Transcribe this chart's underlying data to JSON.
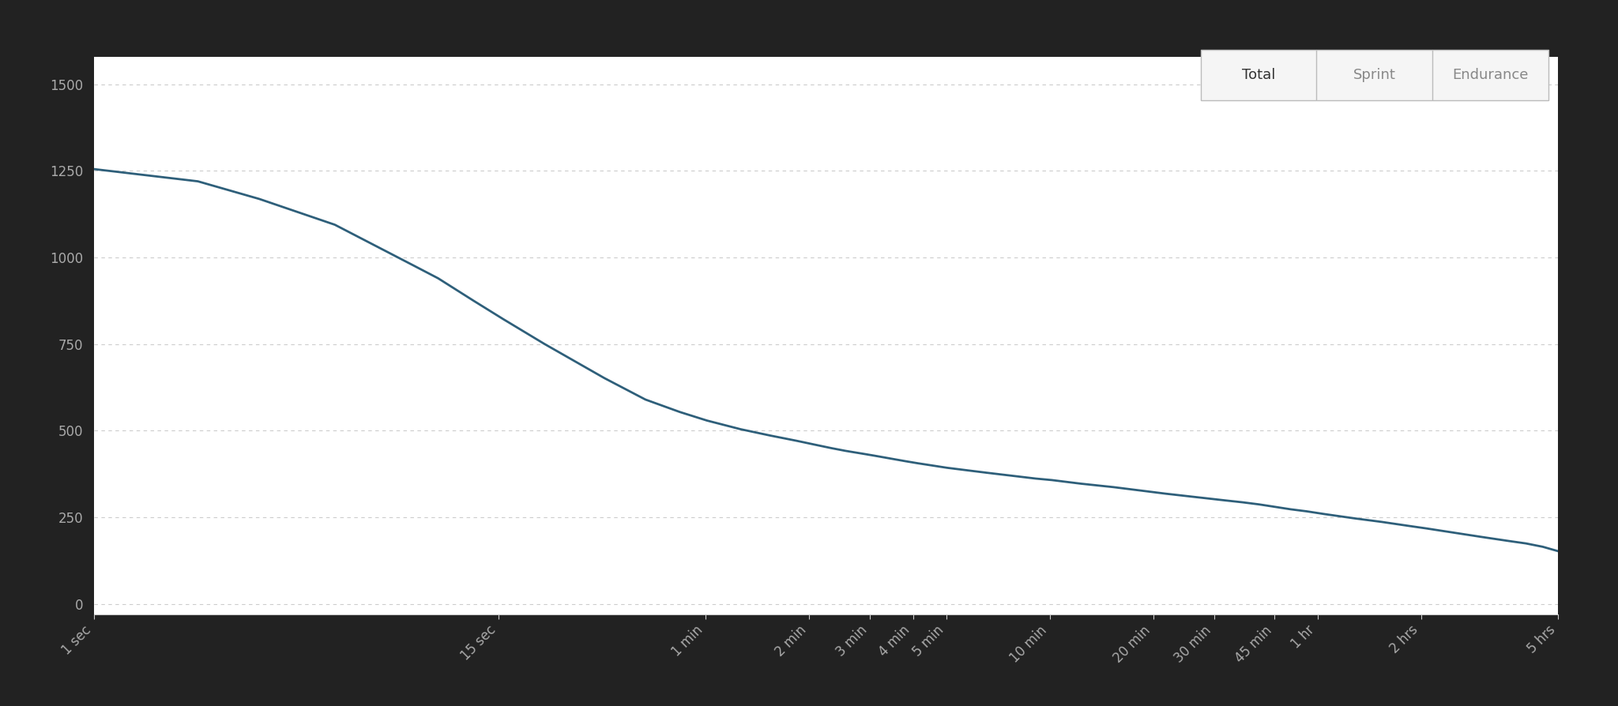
{
  "background_color": "#ffffff",
  "outer_background": "#222222",
  "line_color": "#2e5f7a",
  "line_width": 2.0,
  "yticks": [
    0,
    250,
    500,
    750,
    1000,
    1250,
    1500
  ],
  "ylim": [
    -30,
    1580
  ],
  "xtick_labels": [
    "1 sec",
    "15 sec",
    "1 min",
    "2 min",
    "3 min",
    "4 min",
    "5 min",
    "10 min",
    "20 min",
    "30 min",
    "45 min",
    "1 hr",
    "2 hrs",
    "5 hrs"
  ],
  "xtick_seconds": [
    1,
    15,
    60,
    120,
    180,
    240,
    300,
    600,
    1200,
    1800,
    2700,
    3600,
    7200,
    18000
  ],
  "grid_color": "#cccccc",
  "grid_linestyle": "--",
  "tick_color": "#aaaaaa",
  "button_labels": [
    "Total",
    "Sprint",
    "Endurance"
  ],
  "power_curve": [
    [
      1,
      1255
    ],
    [
      2,
      1220
    ],
    [
      3,
      1170
    ],
    [
      5,
      1095
    ],
    [
      7,
      1020
    ],
    [
      10,
      940
    ],
    [
      12,
      890
    ],
    [
      15,
      830
    ],
    [
      20,
      755
    ],
    [
      25,
      700
    ],
    [
      30,
      655
    ],
    [
      40,
      590
    ],
    [
      50,
      555
    ],
    [
      60,
      530
    ],
    [
      75,
      505
    ],
    [
      90,
      488
    ],
    [
      105,
      475
    ],
    [
      120,
      463
    ],
    [
      135,
      452
    ],
    [
      150,
      443
    ],
    [
      165,
      436
    ],
    [
      180,
      430
    ],
    [
      210,
      418
    ],
    [
      240,
      408
    ],
    [
      270,
      400
    ],
    [
      300,
      393
    ],
    [
      360,
      383
    ],
    [
      420,
      375
    ],
    [
      480,
      368
    ],
    [
      540,
      362
    ],
    [
      600,
      358
    ],
    [
      720,
      348
    ],
    [
      900,
      338
    ],
    [
      1080,
      328
    ],
    [
      1200,
      322
    ],
    [
      1440,
      313
    ],
    [
      1800,
      302
    ],
    [
      2100,
      295
    ],
    [
      2400,
      288
    ],
    [
      2700,
      280
    ],
    [
      3000,
      273
    ],
    [
      3300,
      268
    ],
    [
      3600,
      262
    ],
    [
      4500,
      248
    ],
    [
      5400,
      238
    ],
    [
      6300,
      228
    ],
    [
      7200,
      220
    ],
    [
      9000,
      205
    ],
    [
      10800,
      193
    ],
    [
      12600,
      183
    ],
    [
      14400,
      175
    ],
    [
      16200,
      165
    ],
    [
      18000,
      152
    ]
  ]
}
